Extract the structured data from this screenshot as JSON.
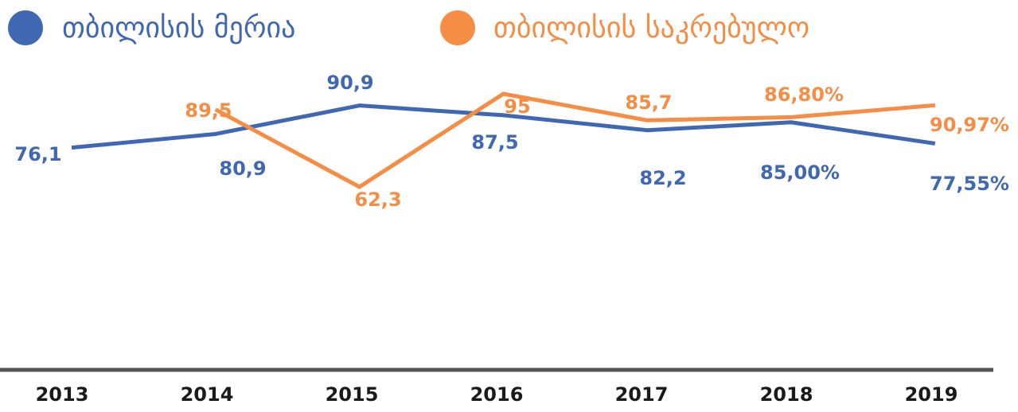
{
  "chart_data": {
    "type": "line",
    "categories": [
      "2013",
      "2014",
      "2015",
      "2016",
      "2017",
      "2018",
      "2019"
    ],
    "series": [
      {
        "name": "თბილისის მერია",
        "color": "#4068b2",
        "values": [
          76.1,
          80.9,
          90.9,
          87.5,
          82.2,
          85.0,
          77.55
        ],
        "value_labels": [
          "76,1",
          "80,9",
          "90,9",
          "87,5",
          "82,2",
          "85,00%",
          "77,55%"
        ]
      },
      {
        "name": "თბილისის საკრებულო",
        "color": "#f58d45",
        "values": [
          null,
          89.5,
          62.3,
          95,
          85.7,
          86.8,
          90.97
        ],
        "value_labels": [
          null,
          "89,5",
          "62,3",
          "95",
          "85,7",
          "86,80%",
          "90,97%"
        ]
      }
    ]
  }
}
